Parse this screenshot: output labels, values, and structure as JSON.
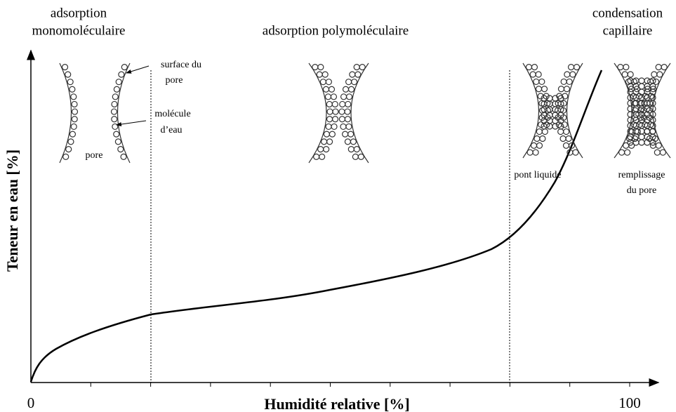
{
  "zones": {
    "mono": [
      "adsorption",
      "monomoléculaire"
    ],
    "poly": "adsorption polymoléculaire",
    "capillary": [
      "condensation",
      "capillaire"
    ]
  },
  "labels": {
    "surface": [
      "surface du",
      "pore"
    ],
    "molecule": [
      "molécule",
      "d’eau"
    ],
    "pore": "pore",
    "bridge": "pont liquide",
    "filling": [
      "remplissage",
      "du pore"
    ]
  },
  "axes": {
    "y_title": "Teneur en eau [%]",
    "x_title": "Humidité relative [%]",
    "x_start": "0",
    "x_end": "100"
  }
}
